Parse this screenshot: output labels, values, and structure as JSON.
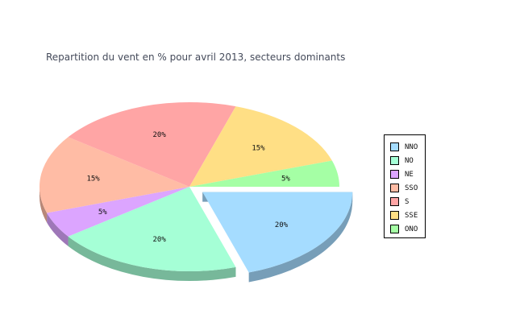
{
  "chart_data": {
    "type": "pie",
    "title": "Repartition du vent en % pour avril 2013, secteurs dominants",
    "categories": [
      "NNO",
      "NO",
      "NE",
      "SSO",
      "S",
      "SSE",
      "ONO"
    ],
    "values": [
      20,
      20,
      5,
      15,
      20,
      15,
      5
    ],
    "labels": [
      "20%",
      "20%",
      "5%",
      "15%",
      "20%",
      "15%",
      "5%"
    ],
    "colors": [
      "#a5dcff",
      "#a5ffd6",
      "#dca5ff",
      "#ffbca5",
      "#ffa5a5",
      "#ffdf85",
      "#a5ffa5"
    ],
    "exploded": "NNO",
    "legend_position": "right"
  }
}
